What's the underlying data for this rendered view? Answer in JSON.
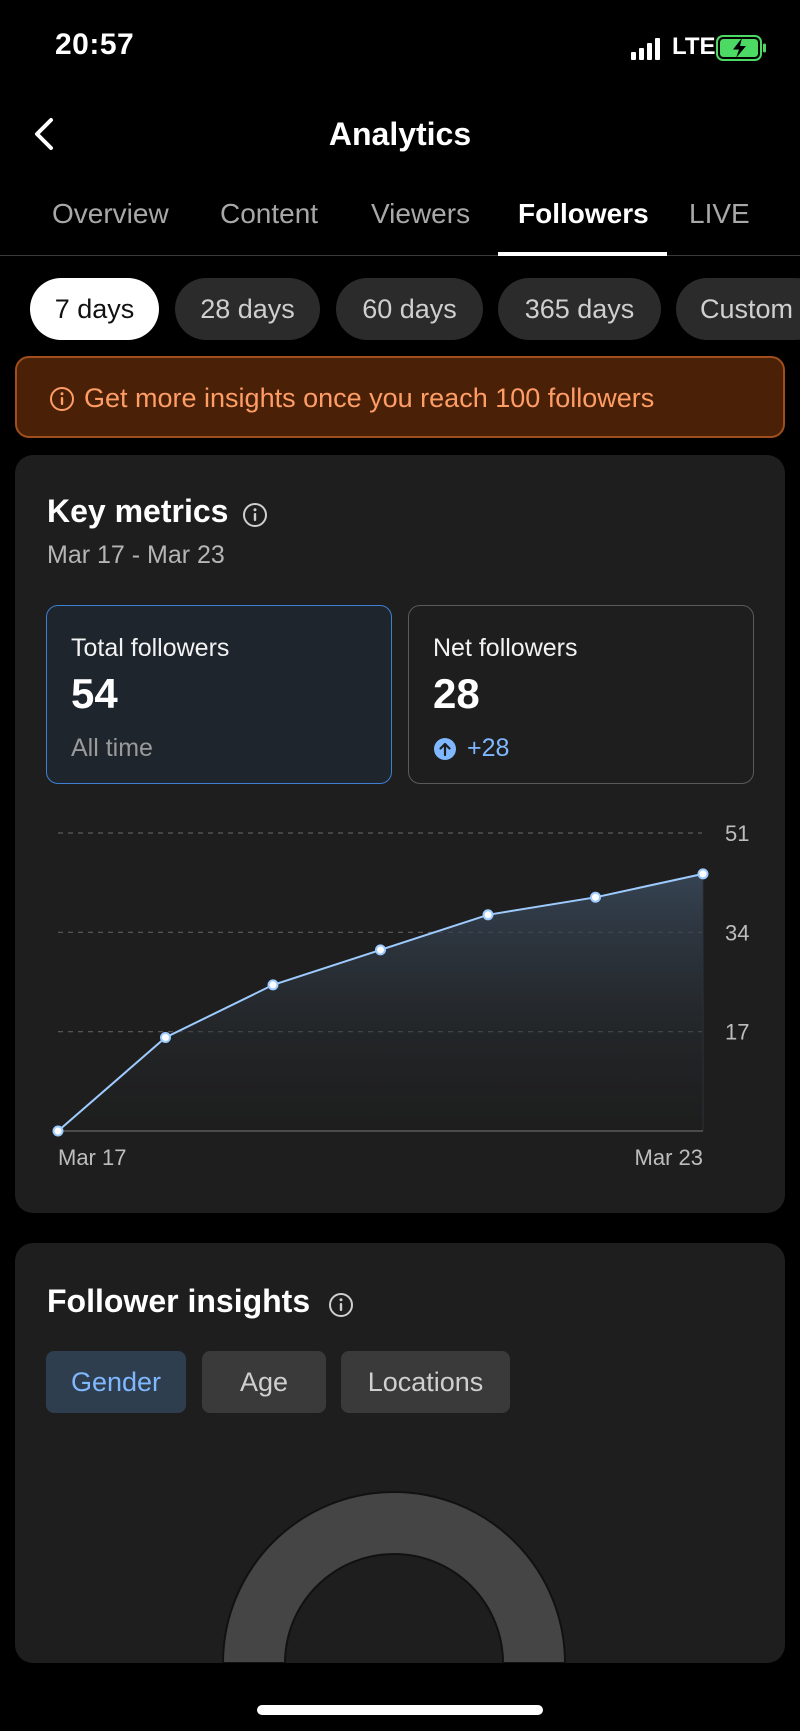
{
  "status_bar": {
    "time": "20:57",
    "network": "LTE"
  },
  "header": {
    "title": "Analytics"
  },
  "tabs": [
    {
      "label": "Overview"
    },
    {
      "label": "Content"
    },
    {
      "label": "Viewers"
    },
    {
      "label": "Followers",
      "active": true
    },
    {
      "label": "LIVE"
    }
  ],
  "date_filters": [
    {
      "label": "7 days",
      "active": true
    },
    {
      "label": "28 days"
    },
    {
      "label": "60 days"
    },
    {
      "label": "365 days"
    },
    {
      "label": "Custom"
    }
  ],
  "banner": {
    "text": "Get more insights once you reach 100 followers"
  },
  "key_metrics": {
    "title": "Key metrics",
    "date_range": "Mar 17 - Mar 23",
    "total": {
      "label": "Total followers",
      "value": "54",
      "sub": "All time"
    },
    "net": {
      "label": "Net followers",
      "value": "28",
      "change": "+28"
    }
  },
  "chart_data": {
    "type": "area",
    "x": [
      "Mar 17",
      "Mar 18",
      "Mar 19",
      "Mar 20",
      "Mar 21",
      "Mar 22",
      "Mar 23"
    ],
    "x_tick_labels": [
      "Mar 17",
      "Mar 23"
    ],
    "values": [
      0,
      16,
      25,
      31,
      37,
      40,
      44
    ],
    "y_ticks": [
      17,
      34,
      51
    ],
    "y_tick_labels": [
      "17",
      "34",
      "51"
    ],
    "ylim": [
      0,
      51
    ],
    "grid": true,
    "line_color": "#9ecbff"
  },
  "follower_insights": {
    "title": "Follower insights",
    "tabs": [
      {
        "label": "Gender",
        "active": true
      },
      {
        "label": "Age"
      },
      {
        "label": "Locations"
      }
    ]
  },
  "colors": {
    "accent_blue": "#7fb8ff",
    "banner_bg": "#4a2006",
    "banner_text": "#ff9d66",
    "battery_green": "#4cd964"
  },
  "icons": {
    "back": "chevron-left-icon",
    "info": "info-icon",
    "up": "arrow-up-circle-icon",
    "battery": "battery-charging-icon"
  }
}
